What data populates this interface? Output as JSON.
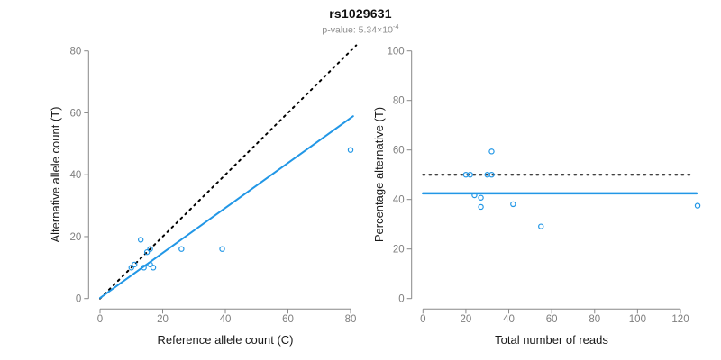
{
  "header": {
    "title": "rs1029631",
    "subtitle_prefix": "p-value: 5.34×10",
    "subtitle_exponent": "-4"
  },
  "colors": {
    "blue": "#2297E6",
    "black": "#000000",
    "axis_line": "#888888",
    "tick_label": "#7f7f7f",
    "axis_title": "#1a1a1a",
    "subtitle_gray": "#8c8c8c"
  },
  "chart_data": [
    {
      "type": "scatter",
      "panel": "left",
      "title": "rs1029631",
      "xlabel": "Reference allele count (C)",
      "ylabel": "Alternative allele count (T)",
      "xlim": [
        0,
        80
      ],
      "ylim": [
        0,
        80
      ],
      "xticks": [
        0,
        20,
        40,
        60,
        80
      ],
      "yticks": [
        0,
        20,
        40,
        60,
        80
      ],
      "grid": false,
      "points": [
        [
          10,
          10
        ],
        [
          11,
          11
        ],
        [
          13,
          19
        ],
        [
          14,
          10
        ],
        [
          15,
          15
        ],
        [
          16,
          11
        ],
        [
          16,
          16
        ],
        [
          17,
          10
        ],
        [
          26,
          16
        ],
        [
          39,
          16
        ],
        [
          80,
          48
        ]
      ],
      "lines": [
        {
          "name": "identity-line",
          "style": "dotted",
          "color": "black",
          "lwd": 2,
          "x": [
            0,
            81.8
          ],
          "y": [
            0,
            81.8
          ]
        },
        {
          "name": "fit-line",
          "style": "solid",
          "color": "blue",
          "lwd": 2,
          "x": [
            0,
            80.8
          ],
          "y": [
            0.2,
            58.9
          ]
        }
      ]
    },
    {
      "type": "scatter",
      "panel": "right",
      "xlabel": "Total number of reads",
      "ylabel": "Percentage alternative (T)",
      "xlim": [
        0,
        120
      ],
      "ylim": [
        0,
        100
      ],
      "xticks": [
        0,
        20,
        40,
        60,
        80,
        100,
        120
      ],
      "yticks": [
        0,
        20,
        40,
        60,
        80,
        100
      ],
      "grid": false,
      "points": [
        [
          20,
          50
        ],
        [
          22,
          50
        ],
        [
          24,
          41.7
        ],
        [
          27,
          40.7
        ],
        [
          27,
          37
        ],
        [
          30,
          50
        ],
        [
          32,
          50
        ],
        [
          32,
          59.4
        ],
        [
          42,
          38.1
        ],
        [
          55,
          29.1
        ],
        [
          128,
          37.5
        ]
      ],
      "lines": [
        {
          "name": "expected-50pct-line",
          "style": "dotted",
          "color": "black",
          "lwd": 2,
          "x": [
            0,
            125.5
          ],
          "y": [
            50,
            50
          ]
        },
        {
          "name": "fit-line",
          "style": "solid",
          "color": "blue",
          "lwd": 2.5,
          "x": [
            0,
            127.5
          ],
          "y": [
            42.5,
            42.5
          ]
        }
      ]
    }
  ]
}
